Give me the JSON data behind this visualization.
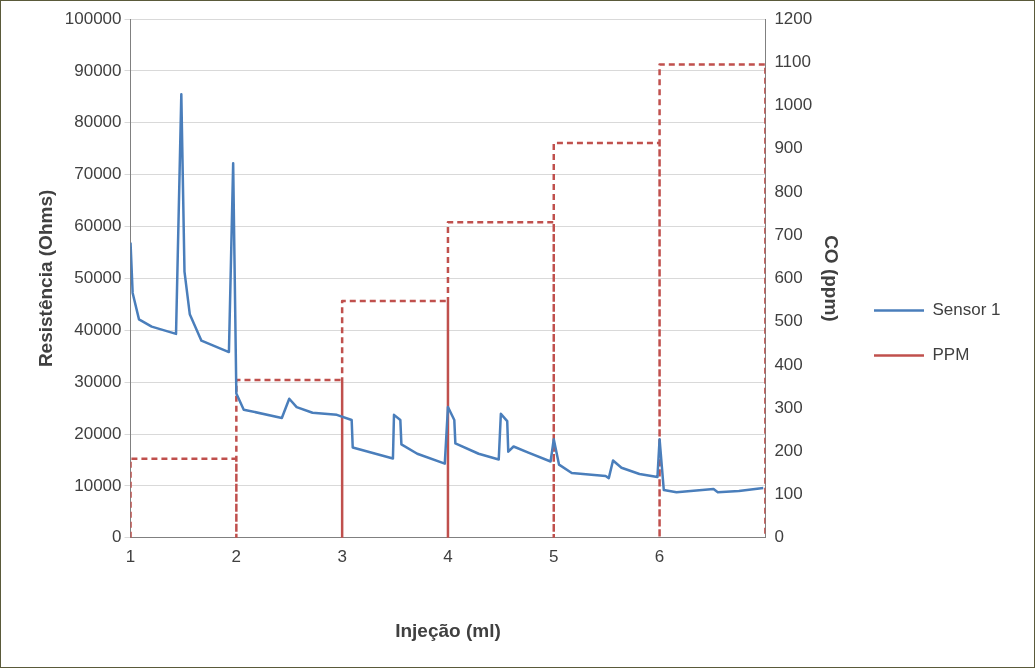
{
  "chart_data": {
    "type": "line",
    "xlabel": "Injeção (ml)",
    "ylabel": "Resistência (Ohms)",
    "y2label": "CO (ppm)",
    "xlim": [
      1,
      7
    ],
    "xticks": [
      1,
      2,
      3,
      4,
      5,
      6
    ],
    "ylim": [
      0,
      100000
    ],
    "yticks": [
      0,
      10000,
      20000,
      30000,
      40000,
      50000,
      60000,
      70000,
      80000,
      90000,
      100000
    ],
    "y2lim": [
      0,
      1200
    ],
    "y2ticks": [
      0,
      100,
      200,
      300,
      400,
      500,
      600,
      700,
      800,
      900,
      1000,
      1100,
      1200
    ],
    "grid": "y",
    "legend": "right",
    "marker": "none",
    "series": [
      {
        "name": "Sensor 1",
        "color": "#4a7ebb",
        "line_style": "solid",
        "x": [
          1.0,
          1.02,
          1.08,
          1.2,
          1.43,
          1.48,
          1.51,
          1.56,
          1.67,
          1.93,
          1.97,
          2.0,
          2.07,
          2.43,
          2.5,
          2.57,
          2.72,
          2.95,
          3.09,
          3.1,
          3.48,
          3.49,
          3.55,
          3.56,
          3.71,
          3.97,
          4.0,
          4.06,
          4.07,
          4.29,
          4.48,
          4.5,
          4.56,
          4.57,
          4.62,
          4.76,
          4.97,
          5.0,
          5.05,
          5.17,
          5.49,
          5.52,
          5.56,
          5.64,
          5.81,
          5.98,
          6.0,
          6.04,
          6.16,
          6.51,
          6.55,
          6.75,
          6.98
        ],
        "values": [
          56900,
          47200,
          42100,
          40700,
          39300,
          85500,
          51300,
          43100,
          38000,
          35800,
          72200,
          27800,
          24700,
          23100,
          26800,
          25200,
          24100,
          23700,
          22700,
          17400,
          15300,
          23700,
          22700,
          18000,
          16200,
          14300,
          25200,
          22700,
          18200,
          16200,
          15100,
          23900,
          22500,
          16600,
          17600,
          16400,
          14700,
          19000,
          14100,
          12500,
          11900,
          11500,
          14900,
          13500,
          12300,
          11700,
          19000,
          9200,
          8800,
          9400,
          8800,
          9000,
          9600
        ]
      },
      {
        "name": "PPM",
        "color": "#c0504d",
        "line_style": "dashed",
        "axis": "y2",
        "x": [
          1,
          1,
          2,
          2,
          2,
          3,
          3,
          3,
          4,
          4,
          4,
          5,
          5,
          5,
          6,
          6,
          6,
          7,
          7
        ],
        "values": [
          0,
          183,
          183,
          0,
          365,
          365,
          0,
          548,
          548,
          0,
          730,
          730,
          0,
          913,
          913,
          0,
          1095,
          1095,
          0
        ]
      }
    ]
  }
}
